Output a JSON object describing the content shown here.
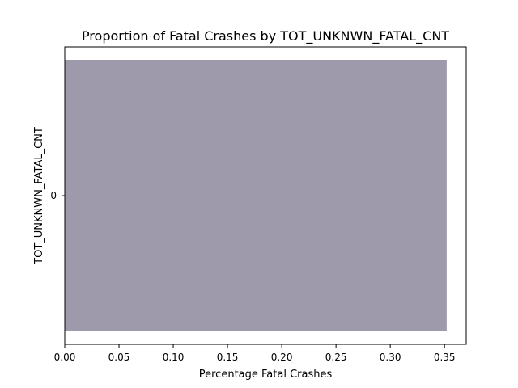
{
  "chart_data": {
    "type": "bar",
    "orientation": "horizontal",
    "title": "Proportion of Fatal Crashes by TOT_UNKNWN_FATAL_CNT",
    "xlabel": "Percentage Fatal Crashes",
    "ylabel": "TOT_UNKNWN_FATAL_CNT",
    "categories": [
      "0"
    ],
    "values": [
      0.352
    ],
    "xlim": [
      0,
      0.37
    ],
    "xticks": [
      0.0,
      0.05,
      0.1,
      0.15,
      0.2,
      0.25,
      0.3,
      0.35
    ],
    "xtick_labels": [
      "0.00",
      "0.05",
      "0.10",
      "0.15",
      "0.20",
      "0.25",
      "0.30",
      "0.35"
    ],
    "bar_color": "#9e9aab",
    "grid": false,
    "legend": "none"
  }
}
